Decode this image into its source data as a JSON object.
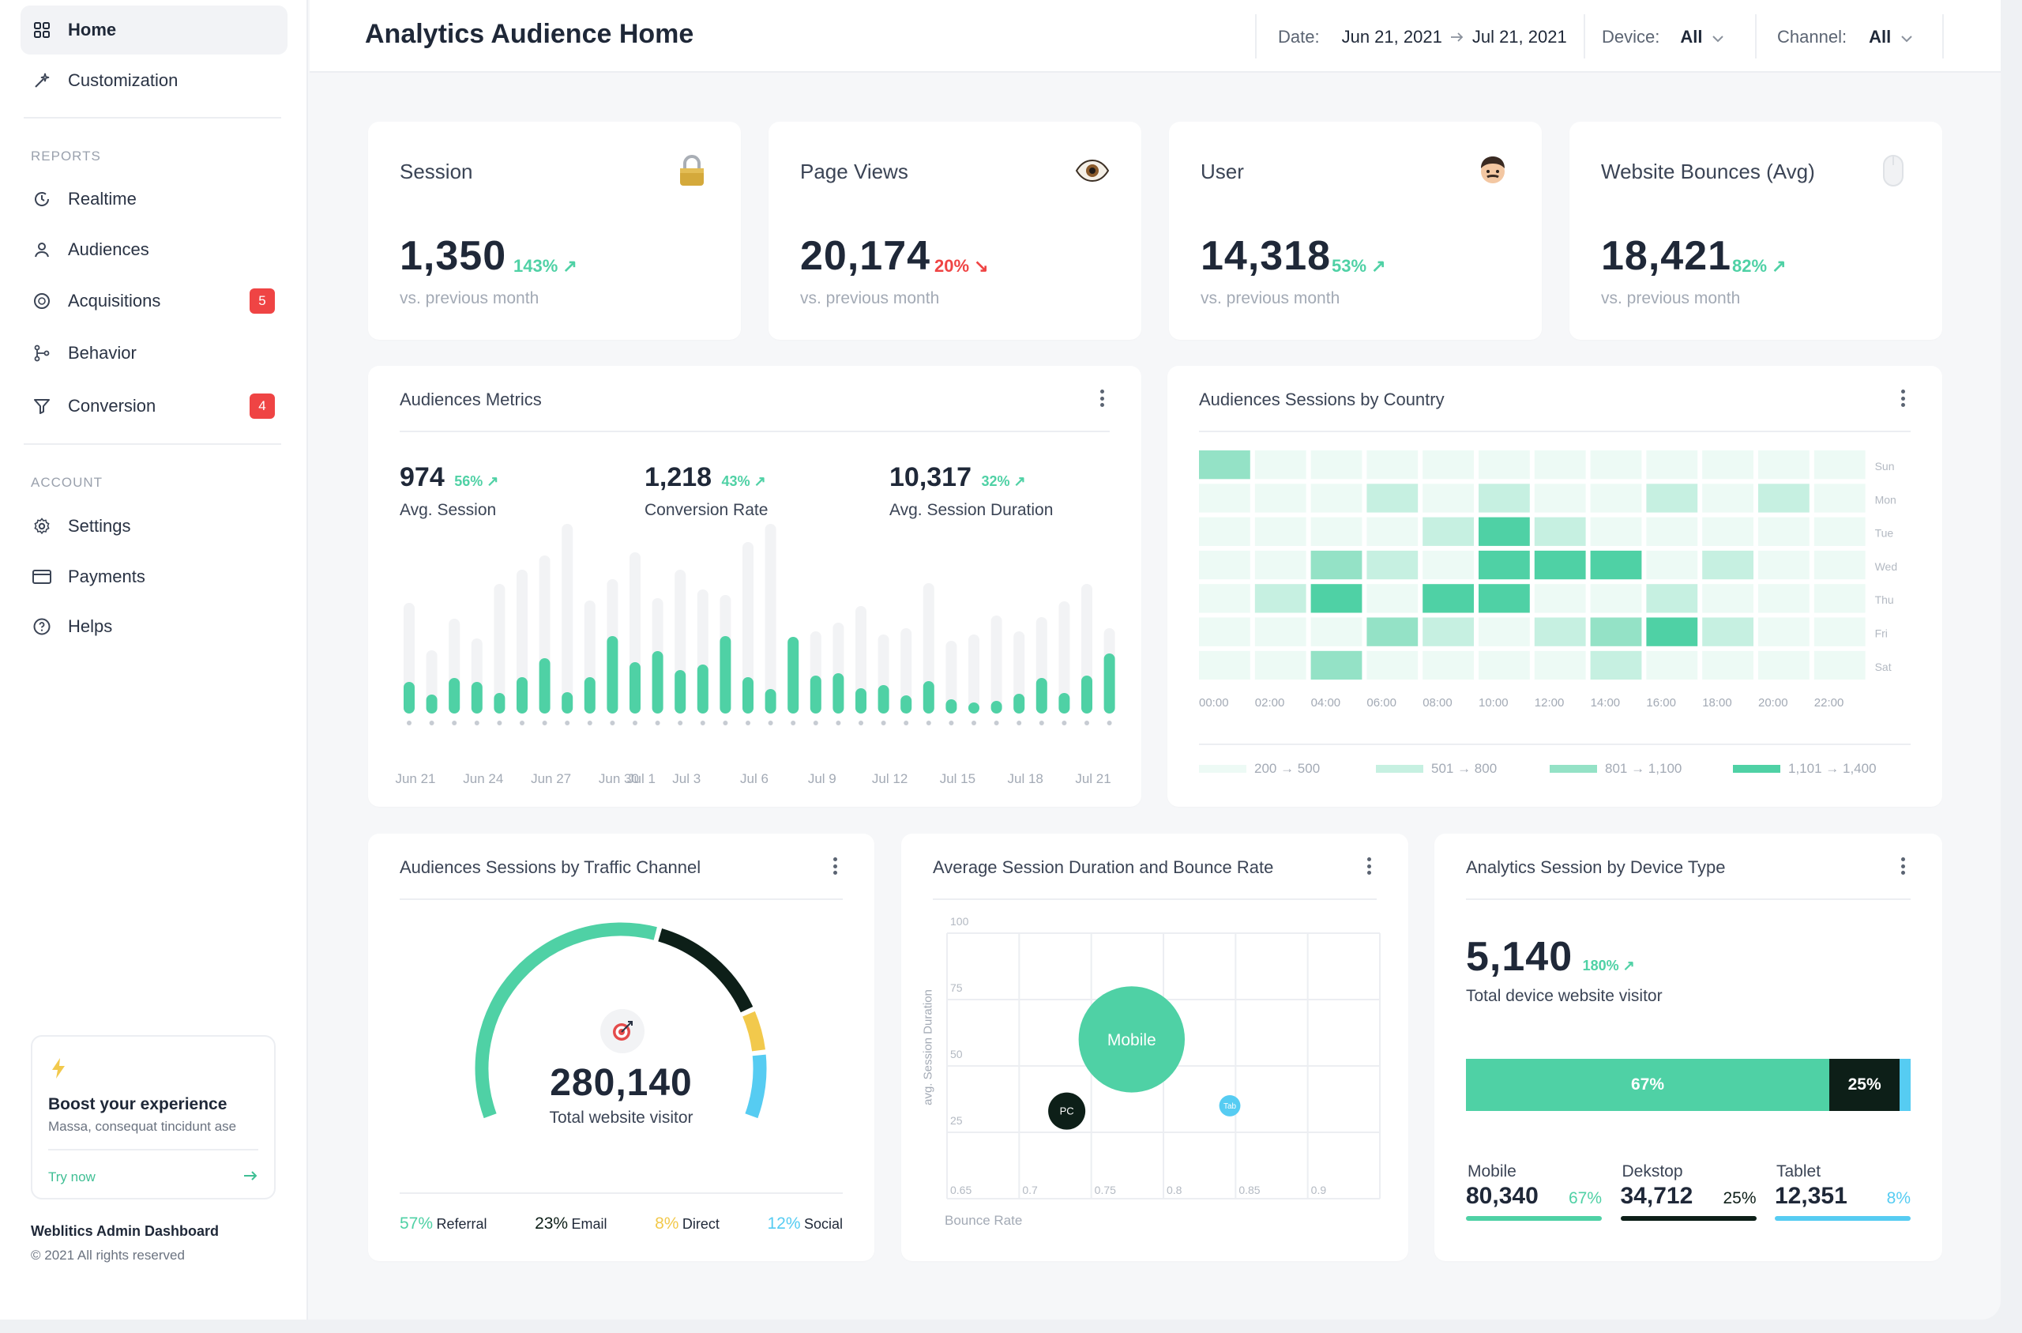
{
  "sidebar": {
    "home": "Home",
    "customization": "Customization",
    "reports_label": "REPORTS",
    "realtime": "Realtime",
    "audiences": "Audiences",
    "acquisitions": "Acquisitions",
    "acquisitions_badge": "5",
    "behavior": "Behavior",
    "conversion": "Conversion",
    "conversion_badge": "4",
    "account_label": "ACCOUNT",
    "settings": "Settings",
    "payments": "Payments",
    "helps": "Helps",
    "boost_title": "Boost your experience",
    "boost_text": "Massa, consequat tincidunt ase",
    "boost_cta": "Try now",
    "footer_title": "Weblitics Admin Dashboard",
    "footer_copy": "© 2021 All rights reserved"
  },
  "header": {
    "title": "Analytics Audience Home",
    "date_label": "Date:",
    "date_from": "Jun 21, 2021",
    "date_to": "Jul 21, 2021",
    "device_label": "Device:",
    "device_value": "All",
    "channel_label": "Channel:",
    "channel_value": "All"
  },
  "stats": [
    {
      "title": "Session",
      "value": "1,350",
      "pct": "143%",
      "trend": "up",
      "sub": "vs. previous month",
      "icon": "lock-icon"
    },
    {
      "title": "Page Views",
      "value": "20,174",
      "pct": "20%",
      "trend": "down",
      "sub": "vs. previous month",
      "icon": "eye-icon"
    },
    {
      "title": "User",
      "value": "14,318",
      "pct": "53%",
      "trend": "up",
      "sub": "vs. previous month",
      "icon": "user-face-icon"
    },
    {
      "title": "Website Bounces (Avg)",
      "value": "18,421",
      "pct": "82%",
      "trend": "up",
      "sub": "vs. previous month",
      "icon": "mouse-icon"
    }
  ],
  "metrics": {
    "title": "Audiences Metrics",
    "items": [
      {
        "value": "974",
        "pct": "56%",
        "label": "Avg. Session"
      },
      {
        "value": "1,218",
        "pct": "43%",
        "label": "Conversion Rate"
      },
      {
        "value": "10,317",
        "pct": "32%",
        "label": "Avg. Session Duration"
      }
    ]
  },
  "heatmap": {
    "title": "Audiences Sessions by Country",
    "legend": [
      "200 → 500",
      "501 → 800",
      "801 → 1,100",
      "1,101 → 1,400"
    ]
  },
  "traffic": {
    "title": "Audiences Sessions by Traffic Channel",
    "total": "280,140",
    "total_label": "Total website visitor",
    "channels": [
      {
        "pct": "57%",
        "label": "Referral",
        "color": "#4fd1a5"
      },
      {
        "pct": "23%",
        "label": "Email",
        "color": "#0d1f18"
      },
      {
        "pct": "8%",
        "label": "Direct",
        "color": "#f2c94c"
      },
      {
        "pct": "12%",
        "label": "Social",
        "color": "#56ccf2"
      }
    ]
  },
  "bubble": {
    "title": "Average Session Duration and Bounce Rate",
    "ylabel": "avg. Session Duration",
    "xlabel": "Bounce Rate"
  },
  "device": {
    "title": "Analytics Session by Device Type",
    "total": "5,140",
    "pct": "180%",
    "total_label": "Total device website visitor",
    "bar_mobile": "67%",
    "bar_desktop": "25%",
    "items": [
      {
        "label": "Mobile",
        "value": "80,340",
        "pct": "67%",
        "color": "#4fd1a5"
      },
      {
        "label": "Dekstop",
        "value": "34,712",
        "pct": "25%",
        "color": "#0d1f18"
      },
      {
        "label": "Tablet",
        "value": "12,351",
        "pct": "8%",
        "color": "#56ccf2"
      }
    ]
  },
  "chart_data": [
    {
      "type": "bar",
      "title": "Audiences Metrics",
      "x": [
        "Jun 21",
        "Jun 22",
        "Jun 23",
        "Jun 24",
        "Jun 25",
        "Jun 26",
        "Jun 27",
        "Jun 28",
        "Jun 29",
        "Jun 30",
        "Jul 1",
        "Jul 2",
        "Jul 3",
        "Jul 4",
        "Jul 5",
        "Jul 6",
        "Jul 7",
        "Jul 8",
        "Jul 9",
        "Jul 10",
        "Jul 11",
        "Jul 12",
        "Jul 13",
        "Jul 14",
        "Jul 15",
        "Jul 16",
        "Jul 17",
        "Jul 18",
        "Jul 19",
        "Jul 20",
        "Jul 21",
        "Jul 22"
      ],
      "x_tick_labels": [
        "Jun 21",
        "Jun 24",
        "Jun 27",
        "Jun 30",
        "Jul 1",
        "Jul 3",
        "Jul 6",
        "Jul 9",
        "Jul 12",
        "Jul 15",
        "Jul 18",
        "Jul 21"
      ],
      "series": [
        {
          "values": [
            40,
            24,
            45,
            40,
            26,
            46,
            70,
            27,
            46,
            98,
            65,
            79,
            55,
            62,
            98,
            46,
            31,
            97,
            48,
            51,
            32,
            36,
            23,
            41,
            18,
            14,
            16,
            25,
            45,
            26,
            48,
            76
          ]
        },
        {
          "values": [
            140,
            80,
            120,
            95,
            164,
            182,
            200,
            240,
            143,
            170,
            204,
            146,
            182,
            157,
            150,
            217,
            240,
            86,
            104,
            115,
            136,
            100,
            108,
            165,
            92,
            100,
            124,
            104,
            122,
            142,
            164,
            108
          ]
        }
      ]
    },
    {
      "type": "heatmap",
      "title": "Audiences Sessions by Country",
      "x": [
        "00:00",
        "02:00",
        "04:00",
        "06:00",
        "08:00",
        "10:00",
        "12:00",
        "14:00",
        "16:00",
        "18:00",
        "20:00",
        "22:00"
      ],
      "y": [
        "Sun",
        "Mon",
        "Tue",
        "Wed",
        "Thu",
        "Fri",
        "Sat"
      ],
      "levels": [
        [
          2,
          0,
          0,
          0,
          0,
          0,
          0,
          0,
          0,
          0,
          0,
          0
        ],
        [
          0,
          0,
          0,
          1,
          0,
          1,
          0,
          0,
          1,
          0,
          1,
          0
        ],
        [
          0,
          0,
          0,
          0,
          1,
          3,
          1,
          0,
          0,
          0,
          0,
          0
        ],
        [
          0,
          0,
          2,
          1,
          0,
          3,
          3,
          3,
          0,
          1,
          0,
          0
        ],
        [
          0,
          1,
          3,
          0,
          3,
          3,
          0,
          0,
          1,
          0,
          0,
          0
        ],
        [
          0,
          0,
          0,
          2,
          1,
          0,
          1,
          2,
          3,
          1,
          0,
          0
        ],
        [
          0,
          0,
          2,
          0,
          0,
          0,
          0,
          1,
          0,
          0,
          0,
          0
        ]
      ],
      "legend": [
        "200 → 500",
        "501 → 800",
        "801 → 1,100",
        "1,101 → 1,400"
      ]
    },
    {
      "type": "pie",
      "title": "Audiences Sessions by Traffic Channel",
      "categories": [
        "Referral",
        "Email",
        "Direct",
        "Social"
      ],
      "values": [
        57,
        23,
        8,
        12
      ]
    },
    {
      "type": "scatter",
      "title": "Average Session Duration and Bounce Rate",
      "xlabel": "Bounce Rate",
      "ylabel": "avg. Session Duration",
      "xlim": [
        0.65,
        0.95
      ],
      "ylim": [
        0,
        100
      ],
      "x_ticks": [
        "0.65",
        "0.7",
        "0.75",
        "0.8",
        "0.85",
        "0.9"
      ],
      "y_ticks": [
        "100",
        "75",
        "50",
        "25"
      ],
      "series": [
        {
          "name": "Mobile",
          "x": 0.778,
          "y": 60,
          "size": 80
        },
        {
          "name": "PC",
          "x": 0.733,
          "y": 33,
          "size": 28
        },
        {
          "name": "Tab",
          "x": 0.846,
          "y": 35,
          "size": 16
        }
      ]
    },
    {
      "type": "bar",
      "title": "Analytics Session by Device Type",
      "categories": [
        "Mobile",
        "Dekstop",
        "Tablet"
      ],
      "values": [
        67,
        25,
        8
      ]
    }
  ]
}
